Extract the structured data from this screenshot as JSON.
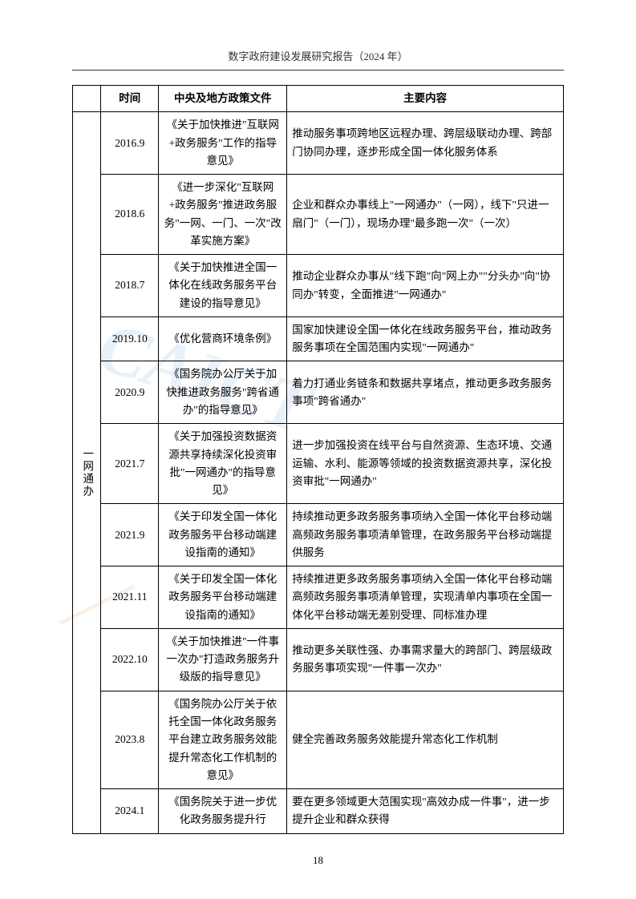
{
  "header": "数字政府建设发展研究报告（2024 年）",
  "page_number": "18",
  "table": {
    "columns": {
      "date": "时间",
      "policy": "中央及地方政策文件",
      "content": "主要内容"
    },
    "category": "一网通办",
    "rows": [
      {
        "date": "2016.9",
        "policy": "《关于加快推进\"互联网+政务服务\"工作的指导意见》",
        "content": "推动服务事项跨地区远程办理、跨层级联动办理、跨部门协同办理，逐步形成全国一体化服务体系"
      },
      {
        "date": "2018.6",
        "policy": "《进一步深化\"互联网+政务服务\"推进政务服务\"一网、一门、一次\"改革实施方案》",
        "content": "企业和群众办事线上\"一网通办\"（一网），线下\"只进一扇门\"（一门），现场办理\"最多跑一次\"（一次）"
      },
      {
        "date": "2018.7",
        "policy": "《关于加快推进全国一体化在线政务服务平台建设的指导意见》",
        "content": "推动企业群众办事从\"线下跑\"向\"网上办\"\"分头办\"向\"协同办\"转变，全面推进\"一网通办\""
      },
      {
        "date": "2019.10",
        "policy": "《优化营商环境条例》",
        "content": "国家加快建设全国一体化在线政务服务平台，推动政务服务事项在全国范围内实现\"一网通办\""
      },
      {
        "date": "2020.9",
        "policy": "《国务院办公厅关于加快推进政务服务\"跨省通办\"的指导意见》",
        "content": "着力打通业务链条和数据共享堵点，推动更多政务服务事项\"跨省通办\""
      },
      {
        "date": "2021.7",
        "policy": "《关于加强投资数据资源共享持续深化投资审批\"一网通办\"的指导意见》",
        "content": "进一步加强投资在线平台与自然资源、生态环境、交通运输、水利、能源等领域的投资数据资源共享，深化投资审批\"一网通办\""
      },
      {
        "date": "2021.9",
        "policy": "《关于印发全国一体化政务服务平台移动端建设指南的通知》",
        "content": "持续推动更多政务服务事项纳入全国一体化平台移动端高频政务服务事项清单管理，在政务服务平台移动端提供服务"
      },
      {
        "date": "2021.11",
        "policy": "《关于印发全国一体化政务服务平台移动端建设指南的通知》",
        "content": "持续推进更多政务服务事项纳入全国一体化平台移动端高频政务服务事项清单管理，实现清单内事项在全国一体化平台移动端无差别受理、同标准办理"
      },
      {
        "date": "2022.10",
        "policy": "《关于加快推进\"一件事一次办\"打造政务服务升级版的指导意见》",
        "content": "推动更多关联性强、办事需求量大的跨部门、跨层级政务服务事项实现\"一件事一次办\""
      },
      {
        "date": "2023.8",
        "policy": "《国务院办公厅关于依托全国一体化政务服务平台建立政务服务效能提升常态化工作机制的意见》",
        "content": "健全完善政务服务效能提升常态化工作机制"
      },
      {
        "date": "2024.1",
        "policy": "《国务院关于进一步优化政务服务提升行",
        "content": "要在更多领域更大范围实现\"高效办成一件事\"，进一步提升企业和群众获得"
      }
    ]
  }
}
